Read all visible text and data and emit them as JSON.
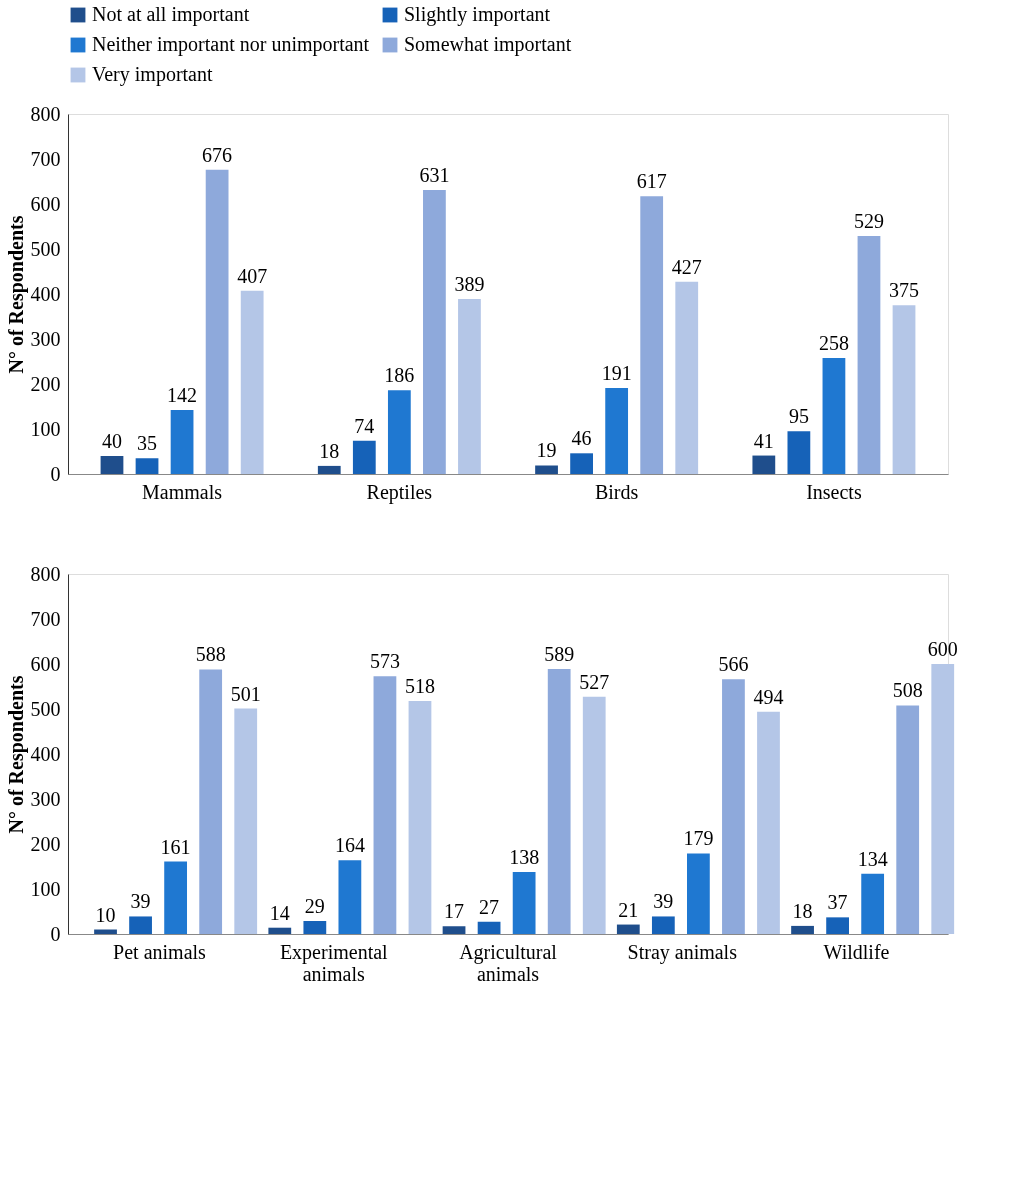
{
  "chart_data": [
    {
      "type": "bar",
      "categories": [
        "Mammals",
        "Reptiles",
        "Birds",
        "Insects"
      ],
      "ylabel": "N° of Respondents",
      "ylim": [
        0,
        800
      ],
      "yticks": [
        0,
        100,
        200,
        300,
        400,
        500,
        600,
        700,
        800
      ],
      "grid": false,
      "legend": "top",
      "data_labels": true,
      "series": [
        {
          "name": "Not at all important",
          "color": "#1f4e8c",
          "values": [
            40,
            18,
            19,
            41
          ]
        },
        {
          "name": "Slightly important",
          "color": "#1662b8",
          "values": [
            35,
            74,
            46,
            95
          ]
        },
        {
          "name": "Neither important nor unimportant",
          "color": "#1f78d1",
          "values": [
            142,
            186,
            191,
            258
          ]
        },
        {
          "name": "Somewhat important",
          "color": "#8ea9db",
          "values": [
            676,
            631,
            617,
            529
          ]
        },
        {
          "name": "Very important",
          "color": "#b4c6e7",
          "values": [
            407,
            389,
            427,
            375
          ]
        }
      ]
    },
    {
      "type": "bar",
      "categories": [
        "Pet animals",
        "Experimental animals",
        "Agricultural animals",
        "Stray animals",
        "Wildlife"
      ],
      "ylabel": "N° of Respondents",
      "ylim": [
        0,
        800
      ],
      "yticks": [
        0,
        100,
        200,
        300,
        400,
        500,
        600,
        700,
        800
      ],
      "grid": false,
      "legend": false,
      "data_labels": true,
      "series": [
        {
          "color": "#1f4e8c",
          "values": [
            10,
            14,
            17,
            21,
            18
          ]
        },
        {
          "color": "#1662b8",
          "values": [
            39,
            29,
            27,
            39,
            37
          ]
        },
        {
          "color": "#1f78d1",
          "values": [
            161,
            164,
            138,
            179,
            134
          ]
        },
        {
          "color": "#8ea9db",
          "values": [
            588,
            573,
            589,
            566,
            508
          ]
        },
        {
          "color": "#b4c6e7",
          "values": [
            501,
            518,
            527,
            494,
            600
          ]
        }
      ]
    }
  ]
}
